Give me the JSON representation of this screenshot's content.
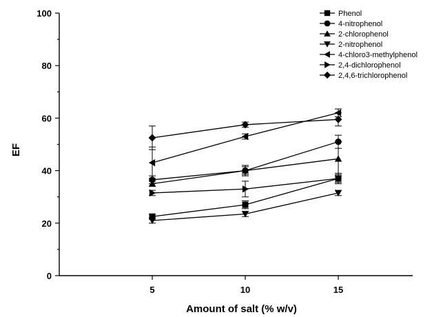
{
  "chart_data": {
    "type": "line",
    "xlabel": "Amount of salt (% w/v)",
    "ylabel": "EF",
    "x": [
      5,
      10,
      15
    ],
    "xlim": [
      0,
      19
    ],
    "ylim": [
      0,
      100
    ],
    "xticks": [
      "5",
      "10",
      "15"
    ],
    "yticks": [
      "0",
      "20",
      "40",
      "60",
      "80",
      "100"
    ],
    "legend_position": "top-right",
    "grid": false,
    "series": [
      {
        "name": "Phenol",
        "marker": "square",
        "values": [
          22.5,
          27,
          37
        ],
        "errors": [
          1,
          1.5,
          1.5
        ]
      },
      {
        "name": "4-nitrophenol",
        "marker": "circle",
        "values": [
          36.5,
          40,
          51
        ],
        "errors": [
          1.5,
          2,
          2.5
        ]
      },
      {
        "name": "2-chlorophenol",
        "marker": "triangle-up",
        "values": [
          35,
          40,
          44.5
        ],
        "errors": [
          1,
          1.5,
          6.5
        ]
      },
      {
        "name": "2-nitrophenol",
        "marker": "triangle-down",
        "values": [
          21,
          23.5,
          31.5
        ],
        "errors": [
          1,
          1,
          1
        ]
      },
      {
        "name": "4-chloro3-methylphenol",
        "marker": "triangle-left",
        "values": [
          43,
          53,
          62
        ],
        "errors": [
          6,
          1,
          1.5
        ]
      },
      {
        "name": "2,4-dichlorophenol",
        "marker": "triangle-right",
        "values": [
          31.5,
          33,
          37
        ],
        "errors": [
          1,
          3,
          2
        ]
      },
      {
        "name": "2,4,6-trichlorophenol",
        "marker": "diamond",
        "values": [
          52.5,
          57.5,
          59.5
        ],
        "errors": [
          4.5,
          1,
          2.5
        ]
      }
    ]
  }
}
